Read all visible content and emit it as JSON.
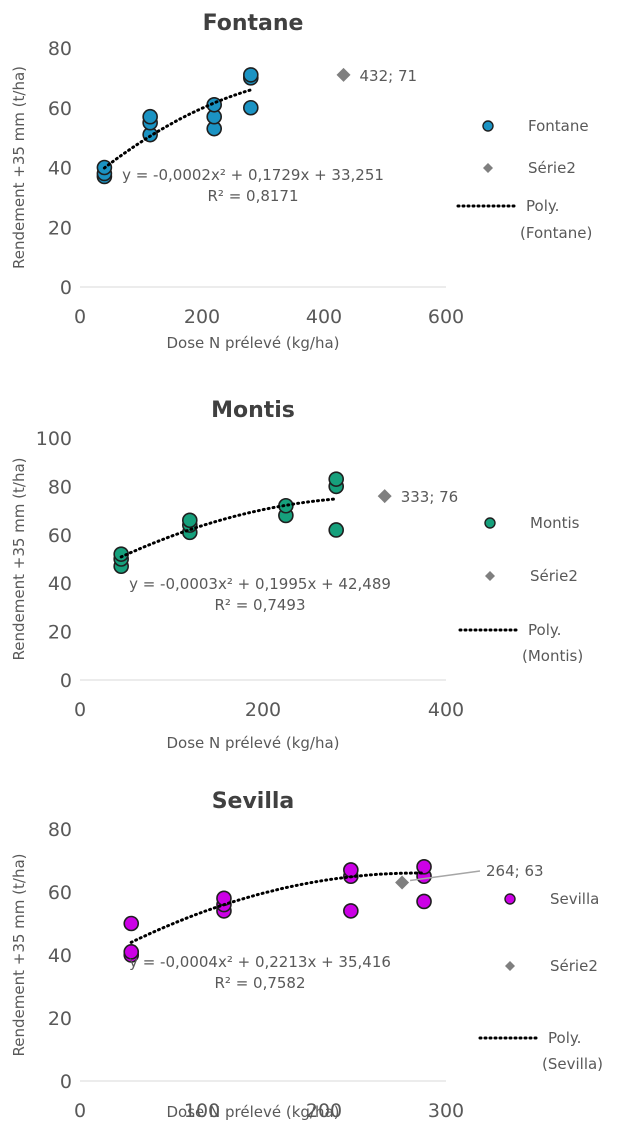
{
  "chart_data": [
    {
      "type": "scatter",
      "title": "Fontane",
      "xlabel": "Dose N prélevé (kg/ha)",
      "ylabel": "Rendement +35 mm (t/ha)",
      "xlim": [
        0,
        600
      ],
      "ylim": [
        0,
        80
      ],
      "xticks": [
        "0",
        "200",
        "400",
        "600"
      ],
      "yticks": [
        "0",
        "20",
        "40",
        "60",
        "80"
      ],
      "grid": false,
      "legend_position": "right",
      "series": [
        {
          "name": "Fontane",
          "marker": "circle",
          "color": "#1b93c3",
          "points": [
            [
              40,
              37
            ],
            [
              40,
              38
            ],
            [
              40,
              40
            ],
            [
              115,
              51
            ],
            [
              115,
              55
            ],
            [
              115,
              57
            ],
            [
              220,
              53
            ],
            [
              220,
              57
            ],
            [
              220,
              61
            ],
            [
              280,
              60
            ],
            [
              280,
              70
            ],
            [
              280,
              71
            ]
          ]
        },
        {
          "name": "Série2",
          "marker": "diamond",
          "color": "#7f7f7f",
          "points": [
            [
              432,
              71
            ]
          ],
          "data_label": "432; 71"
        }
      ],
      "trendline": {
        "name": "Poly. (Fontane)",
        "coeffs": [
          -0.0002,
          0.1729,
          33.251
        ],
        "x_range": [
          40,
          280
        ],
        "equation": "y = -0,0002x² + 0,1729x + 33,251",
        "r2": "R² = 0,8171"
      }
    },
    {
      "type": "scatter",
      "title": "Montis",
      "xlabel": "Dose N prélevé (kg/ha)",
      "ylabel": "Rendement +35 mm (t/ha)",
      "xlim": [
        0,
        400
      ],
      "ylim": [
        0,
        100
      ],
      "xticks": [
        "0",
        "200",
        "400"
      ],
      "yticks": [
        "0",
        "20",
        "40",
        "60",
        "80",
        "100"
      ],
      "grid": false,
      "legend_position": "right",
      "series": [
        {
          "name": "Montis",
          "marker": "circle",
          "color": "#16a07c",
          "points": [
            [
              45,
              47
            ],
            [
              45,
              50
            ],
            [
              45,
              52
            ],
            [
              120,
              61
            ],
            [
              120,
              64
            ],
            [
              120,
              66
            ],
            [
              225,
              68
            ],
            [
              225,
              72
            ],
            [
              280,
              62
            ],
            [
              280,
              80
            ],
            [
              280,
              83
            ]
          ]
        },
        {
          "name": "Série2",
          "marker": "diamond",
          "color": "#7f7f7f",
          "points": [
            [
              333,
              76
            ]
          ],
          "data_label": "333; 76"
        }
      ],
      "trendline": {
        "name": "Poly. (Montis)",
        "coeffs": [
          -0.0003,
          0.1995,
          42.489
        ],
        "x_range": [
          45,
          280
        ],
        "equation": "y = -0,0003x² + 0,1995x + 42,489",
        "r2": "R² = 0,7493"
      }
    },
    {
      "type": "scatter",
      "title": "Sevilla",
      "xlabel": "Dose N prélevé (kg/ha)",
      "ylabel": "Rendement +35 mm (t/ha)",
      "xlim": [
        0,
        300
      ],
      "ylim": [
        0,
        80
      ],
      "xticks": [
        "0",
        "100",
        "200",
        "300"
      ],
      "yticks": [
        "0",
        "20",
        "40",
        "60",
        "80"
      ],
      "grid": false,
      "legend_position": "right",
      "series": [
        {
          "name": "Sevilla",
          "marker": "circle",
          "color": "#cc00e6",
          "points": [
            [
              42,
              40
            ],
            [
              42,
              41
            ],
            [
              42,
              50
            ],
            [
              118,
              54
            ],
            [
              118,
              56
            ],
            [
              118,
              58
            ],
            [
              222,
              54
            ],
            [
              222,
              65
            ],
            [
              222,
              67
            ],
            [
              282,
              57
            ],
            [
              282,
              65
            ],
            [
              282,
              68
            ]
          ]
        },
        {
          "name": "Série2",
          "marker": "diamond",
          "color": "#7f7f7f",
          "points": [
            [
              264,
              63
            ]
          ],
          "data_label": "264; 63"
        }
      ],
      "trendline": {
        "name": "Poly. (Sevilla)",
        "coeffs": [
          -0.0004,
          0.2213,
          35.416
        ],
        "x_range": [
          42,
          282
        ],
        "equation": "y = -0,0004x² + 0,2213x + 35,416",
        "r2": "R² = 0,7582"
      }
    }
  ]
}
